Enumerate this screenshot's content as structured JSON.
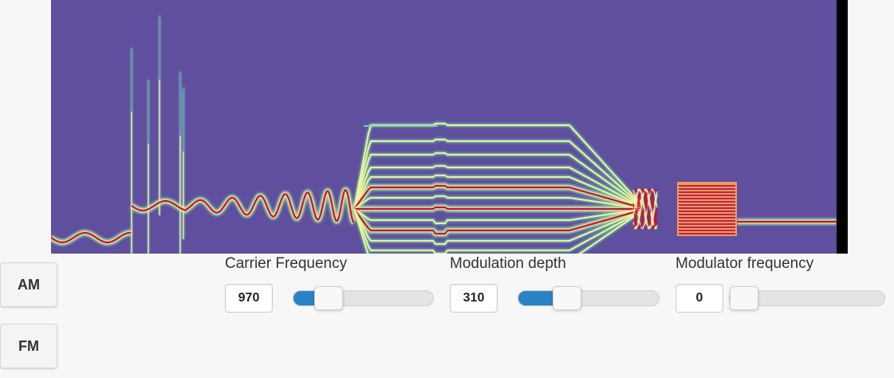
{
  "modes": {
    "am_label": "AM",
    "fm_label": "FM"
  },
  "controls": [
    {
      "label": "Carrier Frequency",
      "value": "970",
      "slider_fraction": 0.19
    },
    {
      "label": "Modulation depth",
      "value": "310",
      "slider_fraction": 0.31
    },
    {
      "label": "Modulator frequency",
      "value": "0",
      "slider_fraction": 0.0
    }
  ],
  "colors": {
    "spectrogram_background": "#5f4f9e",
    "signal_line": "#c0143c",
    "slider_fill": "#2a83c5"
  }
}
